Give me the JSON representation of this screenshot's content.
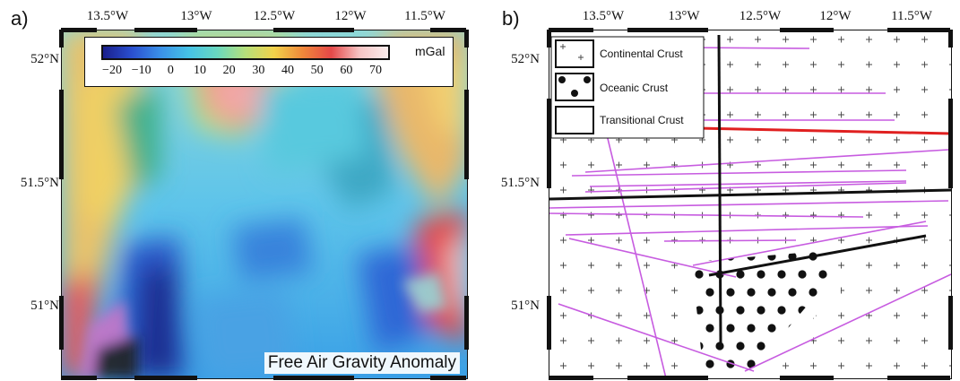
{
  "panel_a": {
    "letter": "a)",
    "lon_labels": [
      "13.5°W",
      "13°W",
      "12.5°W",
      "12°W",
      "11.5°W"
    ],
    "lat_labels": [
      "52°N",
      "51.5°N",
      "51°N"
    ],
    "colorbar": {
      "unit": "mGal",
      "ticks": [
        "−20",
        "−10",
        "0",
        "10",
        "20",
        "30",
        "40",
        "50",
        "60",
        "70"
      ],
      "colors": [
        "#1a1f8c",
        "#2a4fd0",
        "#3a8fe8",
        "#45c2e6",
        "#69d8c0",
        "#b6e07a",
        "#f2d24a",
        "#f0883a",
        "#e54848",
        "#f6c4c4",
        "#fbeeee"
      ]
    },
    "caption": "Free Air Gravity Anomaly"
  },
  "panel_b": {
    "letter": "b)",
    "lon_labels": [
      "13.5°W",
      "13°W",
      "12.5°W",
      "12°W",
      "11.5°W"
    ],
    "lat_labels": [
      "52°N",
      "51.5°N",
      "51°N"
    ],
    "legend": {
      "continental": "Continental Crust",
      "oceanic": "Oceanic Crust",
      "transitional": "Transitional Crust"
    },
    "colors": {
      "profiles": "#c75ce0",
      "boundary": "#111111",
      "highlight": "#e02020"
    }
  }
}
